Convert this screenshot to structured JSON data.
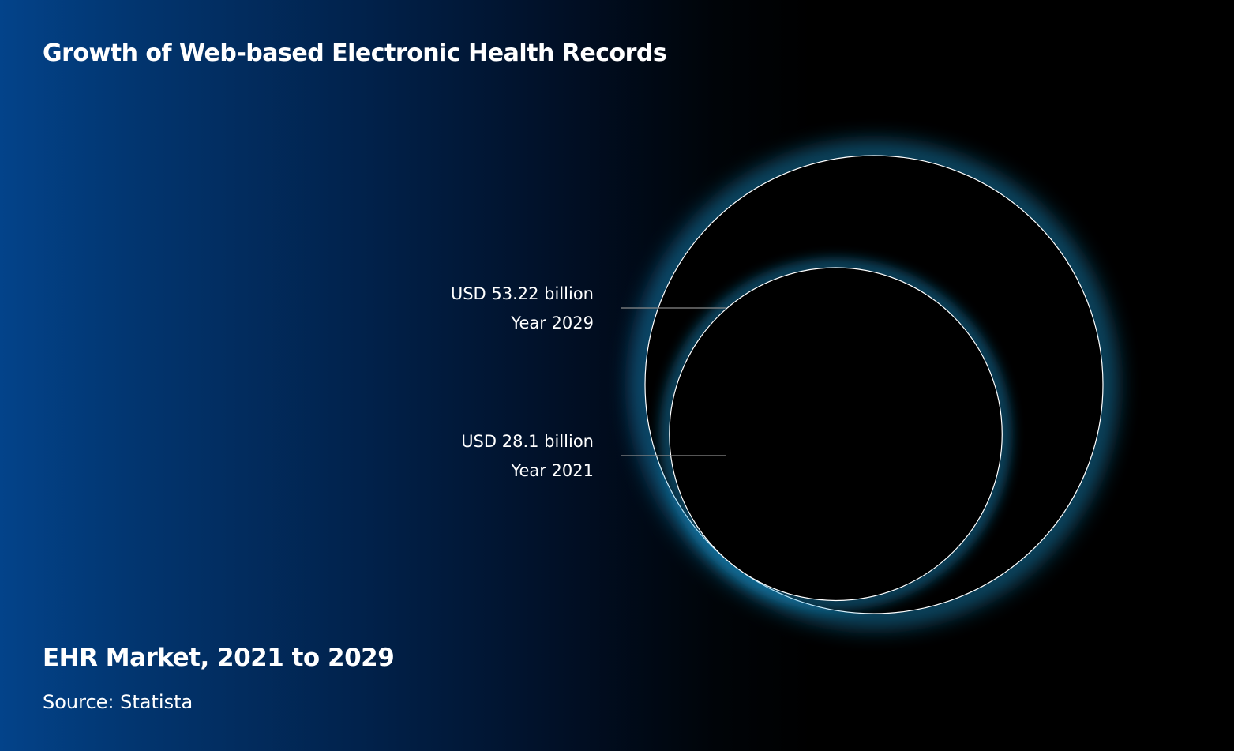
{
  "header": {
    "title": "Growth of Web-based Electronic Health Records"
  },
  "footer": {
    "subtitle": "EHR Market, 2021 to 2029",
    "source": "Source: Statista"
  },
  "colors": {
    "background_left": "#03438a",
    "background_right": "#000000",
    "circle_stroke": "#ffffff",
    "glow": "#1ea7e8",
    "leader_line": "#8a8a8a"
  },
  "chart_data": {
    "type": "bubble",
    "title": "Growth of Web-based Electronic Health Records",
    "subtitle": "EHR Market, 2021 to 2029",
    "unit": "USD billion",
    "points": [
      {
        "year": "2029",
        "value": 53.22,
        "value_label": "USD 53.22 billion",
        "year_label": "Year 2029"
      },
      {
        "year": "2021",
        "value": 28.1,
        "value_label": "USD 28.1 billion",
        "year_label": "Year 2021"
      }
    ]
  }
}
